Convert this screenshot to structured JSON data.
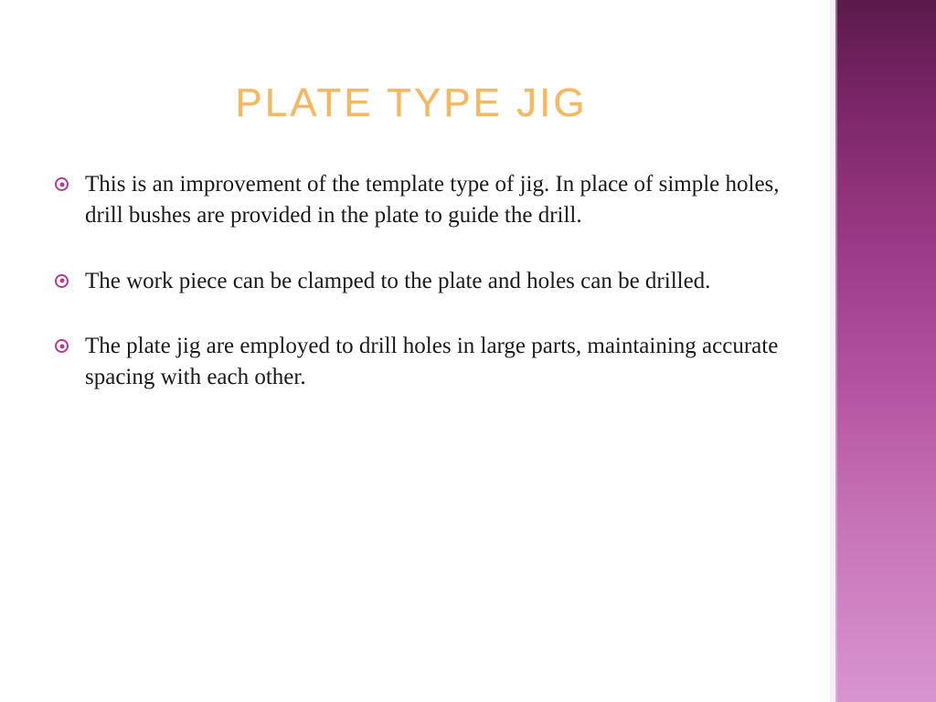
{
  "slide": {
    "title": "PLATE TYPE JIG",
    "title_color": "#f4b860",
    "title_fontsize": 44,
    "title_letter_spacing": 3,
    "bullets": [
      "This is an improvement of the template type of jig. In place of simple holes, drill bushes are provided in the plate to guide the drill.",
      "The work piece can be clamped to the plate and holes can be drilled.",
      "The plate jig are employed to drill holes in large parts, maintaining accurate spacing with each other."
    ],
    "bullet_fontsize": 25,
    "bullet_color": "#1a1a1a",
    "bullet_marker_color": "#b83a8c",
    "accent_gradient": [
      "#5a1a4a",
      "#7b2668",
      "#9b3a86",
      "#b454a0",
      "#c774b8",
      "#d894d0"
    ],
    "background_color": "#ffffff"
  }
}
